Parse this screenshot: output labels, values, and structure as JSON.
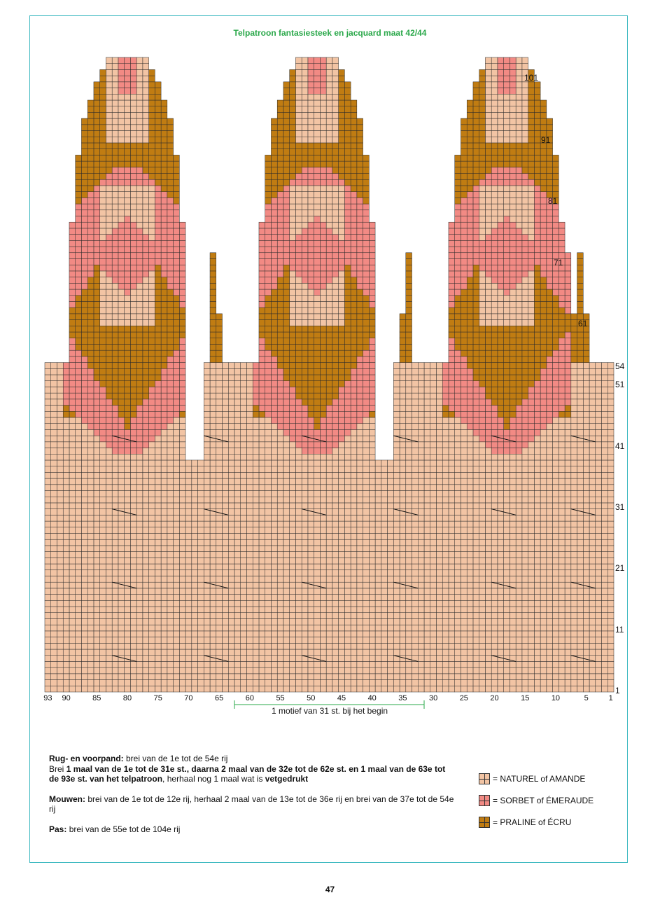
{
  "title": "Telpatroon fantasiesteek en jacquard maat 42/44",
  "colors": {
    "naturel": "#f2c4a4",
    "sorbet": "#f28a84",
    "praline": "#c07c12",
    "frame": "#3bb8c0",
    "title": "#2aa84a",
    "grid": "#2b2b2b"
  },
  "chart_data": {
    "type": "knitting-chart",
    "stitches": 93,
    "rows": 104,
    "x_ticks": [
      "93",
      "90",
      "85",
      "80",
      "75",
      "70",
      "65",
      "60",
      "55",
      "50",
      "45",
      "40",
      "35",
      "30",
      "25",
      "20",
      "15",
      "10",
      "5",
      "1"
    ],
    "row_ticks": [
      "101",
      "91",
      "81",
      "71",
      "61",
      "54",
      "51",
      "41",
      "31",
      "21",
      "11",
      "1"
    ],
    "motif_label": "1 motief van 31 st. bij het begin",
    "motif_range": [
      62,
      32
    ]
  },
  "instructions": {
    "rug_heading": "Rug- en voorpand:",
    "rug_text": " brei van de 1e tot de 54e rij",
    "brei_1": "Brei ",
    "brei_bold": "1 maal van de 1e tot de 31e st., daarna 2 maal van de 32e tot de 62e st. en 1 maal van de 63e tot de 93e st. van het telpatroon",
    "brei_2": ", herhaal nog 1 maal wat is ",
    "brei_bold2": "vetgedrukt",
    "mouwen_heading": "Mouwen:",
    "mouwen_text": " brei van de 1e tot de 12e rij, herhaal 2 maal van de 13e tot de 36e rij en brei van de 37e tot de 54e rij",
    "pas_heading": "Pas:",
    "pas_text": " brei van de 55e tot de 104e rij"
  },
  "legend": [
    {
      "label": "= NATUREL of AMANDE",
      "color": "#f2c4a4"
    },
    {
      "label": "= SORBET of ÉMERAUDE",
      "color": "#f28a84"
    },
    {
      "label": "= PRALINE of ÉCRU",
      "color": "#c07c12"
    }
  ],
  "page_number": "47"
}
